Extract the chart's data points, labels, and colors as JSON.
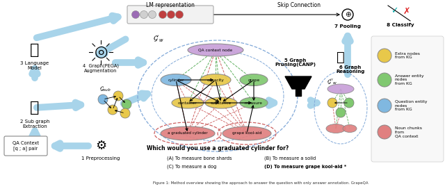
{
  "bg_color": "#ffffff",
  "lm_repr_label": "LM representation",
  "skip_connection_label": "Skip Connection",
  "pooling_label": "7 Pooling",
  "classify_label": "8 Classify",
  "graph_aug_label": "4  Graph(PEGA)\nAugmentation",
  "graph_pruning_label": "5 Graph\nPruning(CANP)",
  "graph_reasoning_label": "6 Graph\nReasoning",
  "lang_model_label": "3 Language\nModel",
  "subgraph_label": "2 Sub graph\nExtraction",
  "preprocess_label": "1 Preprocessing",
  "qa_context_label": "QA Context\n[q ; a] pair",
  "question_label": "Which would you use a graduated cylinder for?",
  "answer_a": "(A) To measure bone shards",
  "answer_b": "(B) To measure a solid",
  "answer_c": "(C) To measure a dog",
  "answer_d": "(D) To measure grape kool-aid *",
  "lm_dot_colors": [
    "#9b6bb5",
    "#d0d0d0",
    "#d0d0d0",
    "#c04040",
    "#c04040",
    "#c04040"
  ],
  "legend_items": [
    {
      "label": "Extra nodes\nfrom KG",
      "color": "#e8c84a"
    },
    {
      "label": "Answer entity\nnodes\nfrom KG",
      "color": "#80c870"
    },
    {
      "label": "Question entity\nnodes\nfrom KG",
      "color": "#80b8e0"
    },
    {
      "label": "Noun chunks\nfrom\nQA context",
      "color": "#e08080"
    }
  ]
}
